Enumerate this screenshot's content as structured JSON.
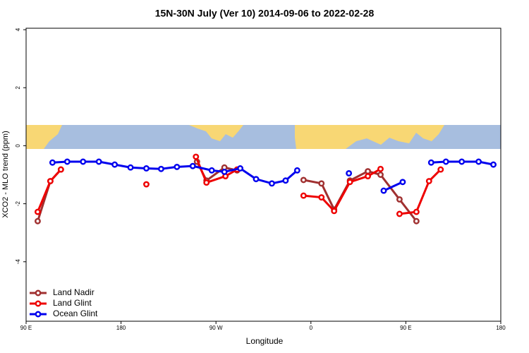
{
  "chart_data": {
    "type": "line",
    "title": "15N-30N July (Ver 10)   2014-09-06 to 2022-02-28",
    "x_label": "Longitude",
    "y_label": "XCO2 - MLO trend (ppm)",
    "xlim": [
      90,
      540
    ],
    "ylim": [
      -6.05,
      4.05
    ],
    "xticks": [
      {
        "value": 90,
        "label": "90 E"
      },
      180,
      {
        "value": 270,
        "label": "90 W"
      },
      {
        "value": 360,
        "label": "0"
      },
      {
        "value": 450,
        "label": "90 E"
      },
      {
        "value": 540,
        "label": "180"
      }
    ],
    "yticks": [
      4,
      2,
      0,
      -2,
      -4
    ],
    "legend": "bottom-left",
    "series": [
      {
        "name": "Land Nadir",
        "color": "#a03030",
        "x": [
          101,
          113,
          123,
          null,
          252,
          261,
          278,
          290,
          null,
          353,
          370,
          382,
          397,
          414,
          426,
          444,
          460
        ],
        "values": [
          -2.6,
          -1.22,
          -0.82,
          null,
          -0.55,
          -1.2,
          -0.75,
          -0.85,
          null,
          -1.18,
          -1.3,
          -2.2,
          -1.2,
          -0.88,
          -1.0,
          -1.85,
          -2.6
        ]
      },
      {
        "name": "Land Glint",
        "color": "#ee0000",
        "x": [
          101,
          113,
          123,
          null,
          204,
          null,
          251,
          261,
          279,
          290,
          null,
          353,
          370,
          382,
          397,
          414,
          426,
          null,
          444,
          460,
          472,
          483
        ],
        "values": [
          -2.28,
          -1.22,
          -0.82,
          null,
          -1.33,
          null,
          -0.38,
          -1.27,
          -1.05,
          -0.82,
          null,
          -1.72,
          -1.78,
          -2.25,
          -1.25,
          -1.05,
          -0.8,
          null,
          -2.35,
          -2.28,
          -1.22,
          -0.82
        ]
      },
      {
        "name": "Ocean Glint",
        "color": "#0000ee",
        "x": [
          115,
          129,
          144,
          159,
          174,
          189,
          204,
          218,
          233,
          248,
          266,
          278,
          293,
          308,
          323,
          336,
          347,
          null,
          396,
          null,
          429,
          447,
          null,
          474,
          488,
          503,
          519,
          533
        ],
        "values": [
          -0.58,
          -0.55,
          -0.55,
          -0.55,
          -0.65,
          -0.75,
          -0.78,
          -0.8,
          -0.73,
          -0.7,
          -0.85,
          -0.9,
          -0.78,
          -1.15,
          -1.3,
          -1.2,
          -0.85,
          null,
          -0.95,
          null,
          -1.55,
          -1.25,
          null,
          -0.58,
          -0.55,
          -0.55,
          -0.55,
          -0.65
        ]
      }
    ]
  }
}
